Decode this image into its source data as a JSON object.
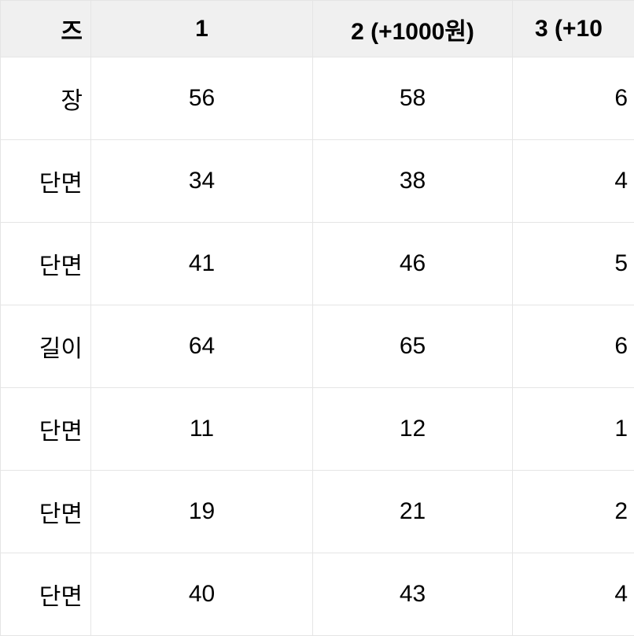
{
  "table": {
    "background_color": "#ffffff",
    "header_background_color": "#f0f0f0",
    "border_color": "#e5e5e5",
    "text_color": "#000000",
    "header_font_size": 30,
    "cell_font_size": 30,
    "header_font_weight": 700,
    "columns": {
      "label": "즈",
      "col1": "1",
      "col2": "2 (+1000원)",
      "col3": "3 (+10"
    },
    "rows": [
      {
        "label": "장",
        "c1": "56",
        "c2": "58",
        "c3": "6"
      },
      {
        "label": "단면",
        "c1": "34",
        "c2": "38",
        "c3": "4"
      },
      {
        "label": "단면",
        "c1": "41",
        "c2": "46",
        "c3": "5"
      },
      {
        "label": "길이",
        "c1": "64",
        "c2": "65",
        "c3": "6"
      },
      {
        "label": "단면",
        "c1": "11",
        "c2": "12",
        "c3": "1"
      },
      {
        "label": "단면",
        "c1": "19",
        "c2": "21",
        "c3": "2"
      },
      {
        "label": "단면",
        "c1": "40",
        "c2": "43",
        "c3": "4"
      }
    ]
  }
}
